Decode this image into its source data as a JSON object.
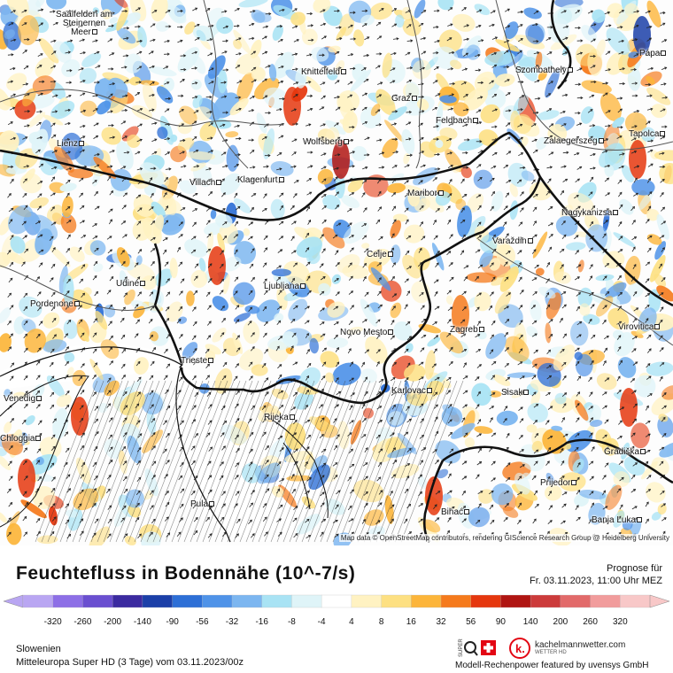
{
  "map": {
    "attribution": "Map data © OpenStreetMap contributors, rendering GIScience Research Group @ Heidelberg University",
    "cities": [
      {
        "name": "Saalfelden am Steinernen Meer"
      },
      {
        "name": "Knittelfeld"
      },
      {
        "name": "Szombathely"
      },
      {
        "name": "Pápa"
      },
      {
        "name": "Graz"
      },
      {
        "name": "Feldbach"
      },
      {
        "name": "Lienz"
      },
      {
        "name": "Wolfsberg"
      },
      {
        "name": "Zalaegerszeg"
      },
      {
        "name": "Tapolca"
      },
      {
        "name": "Villach"
      },
      {
        "name": "Klagenfurt"
      },
      {
        "name": "Maribor"
      },
      {
        "name": "Nagykanizsa"
      },
      {
        "name": "Varaždin"
      },
      {
        "name": "Celje"
      },
      {
        "name": "Udine"
      },
      {
        "name": "Ljubljana"
      },
      {
        "name": "Pordenone"
      },
      {
        "name": "Novo Mesto"
      },
      {
        "name": "Zagreb"
      },
      {
        "name": "Virovitica"
      },
      {
        "name": "Trieste"
      },
      {
        "name": "Karlovac"
      },
      {
        "name": "Sisak"
      },
      {
        "name": "Venedig"
      },
      {
        "name": "Chioggia"
      },
      {
        "name": "Rijeka"
      },
      {
        "name": "Gradiška"
      },
      {
        "name": "Prijedor"
      },
      {
        "name": "Bihać"
      },
      {
        "name": "Pula"
      },
      {
        "name": "Banja Luka"
      }
    ]
  },
  "header": {
    "title": "Feuchtefluss in Bodennähe (10^-7/s)",
    "forecast_label": "Prognose für",
    "forecast_time": "Fr. 03.11.2023, 11:00 Uhr MEZ"
  },
  "colorbar": {
    "ticks": [
      "-320",
      "-260",
      "-200",
      "-140",
      "-90",
      "-56",
      "-32",
      "-16",
      "-8",
      "-4",
      "4",
      "8",
      "16",
      "32",
      "56",
      "90",
      "140",
      "200",
      "260",
      "320"
    ],
    "colors": [
      "#b9a6f2",
      "#8d6fe6",
      "#6a4fd0",
      "#3b2aa0",
      "#1b3fa8",
      "#2d6fd6",
      "#4f93e8",
      "#7cb6f0",
      "#a9e3f4",
      "#dff4f8",
      "#ffffff",
      "#fff2c2",
      "#fde082",
      "#fcb53a",
      "#f57a1c",
      "#e5370e",
      "#b01512",
      "#cc3b3b",
      "#e26a6a",
      "#f19c9c",
      "#f8c8c8"
    ]
  },
  "footer": {
    "region": "Slowenien",
    "model": "Mitteleuropa Super HD  (3 Tage)  vom  03.11.2023/00z",
    "brand": "kachelmannwetter.com",
    "brand_sub": "WETTER HD",
    "powered": "Modell-Rechenpower featured by uvensys GmbH"
  }
}
